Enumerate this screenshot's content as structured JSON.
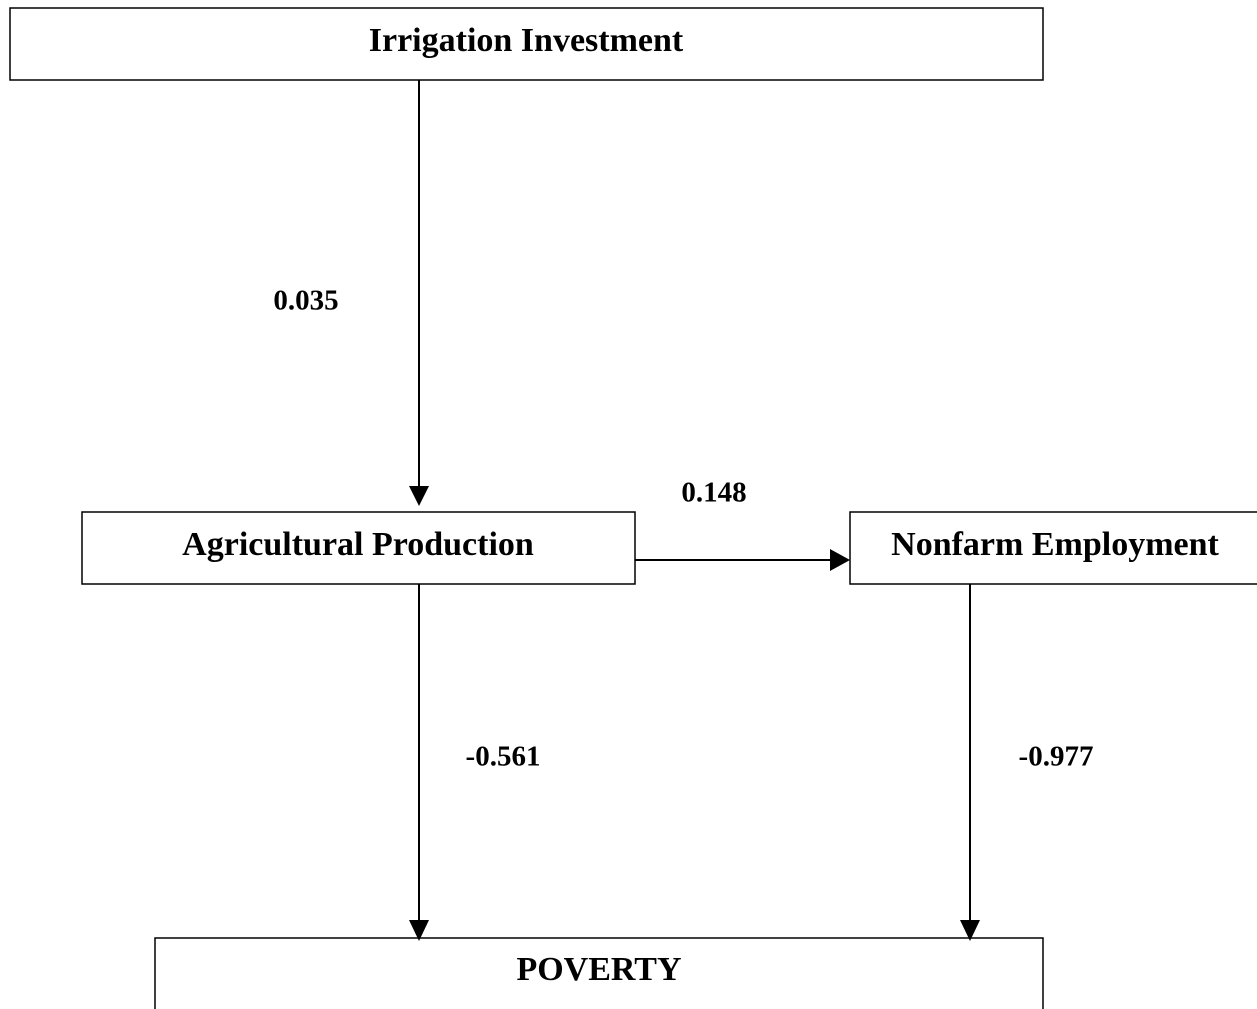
{
  "nodes": [
    {
      "label": "Irrigation Investment"
    },
    {
      "label": "Agricultural Production"
    },
    {
      "label": "Nonfarm Employment"
    },
    {
      "label": "POVERTY"
    }
  ],
  "edges": [
    {
      "label": "0.035"
    },
    {
      "label": "0.148"
    },
    {
      "label": "-0.561"
    },
    {
      "label": "-0.977"
    }
  ]
}
